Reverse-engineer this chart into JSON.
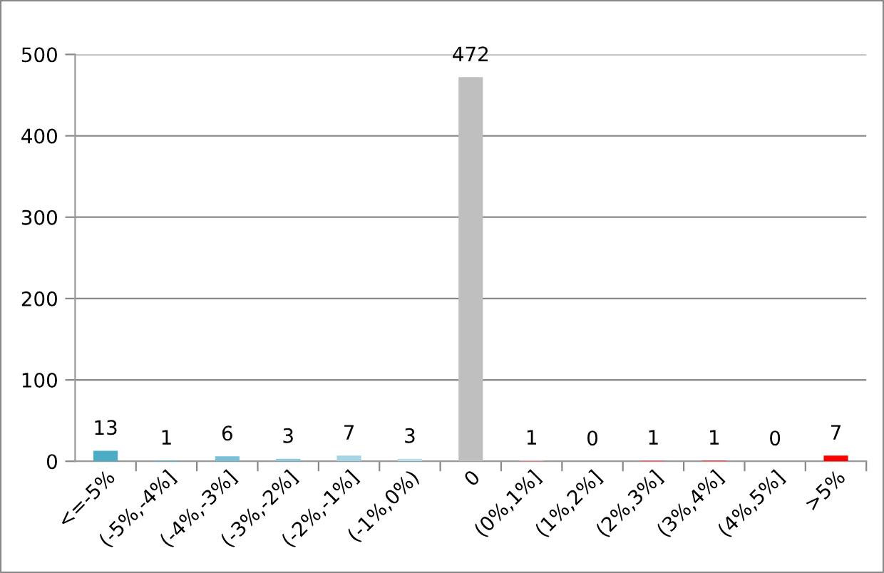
{
  "chart_data": {
    "type": "bar",
    "categories": [
      "<=-5%",
      "(-5%,-4%]",
      "(-4%,-3%]",
      "(-3%,-2%]",
      "(-2%,-1%]",
      "(-1%,0%)",
      "0",
      "(0%,1%]",
      "(1%,2%]",
      "(2%,3%]",
      "(3%,4%]",
      "(4%,5%]",
      ">5%"
    ],
    "values": [
      13,
      1,
      6,
      3,
      7,
      3,
      472,
      1,
      0,
      1,
      1,
      0,
      7
    ],
    "colors": [
      "#4bacc6",
      "#5cb4cc",
      "#78c0d4",
      "#8ccadc",
      "#a5d5e4",
      "#b7dde8",
      "#bfbfbf",
      "#f4a0a0",
      "#f48080",
      "#f46060",
      "#f44040",
      "#f42020",
      "#ff0000"
    ],
    "ylim": [
      0,
      500
    ],
    "yticks": [
      0,
      100,
      200,
      300,
      400,
      500
    ],
    "grid": "y",
    "data_labels": true,
    "legend": false
  }
}
